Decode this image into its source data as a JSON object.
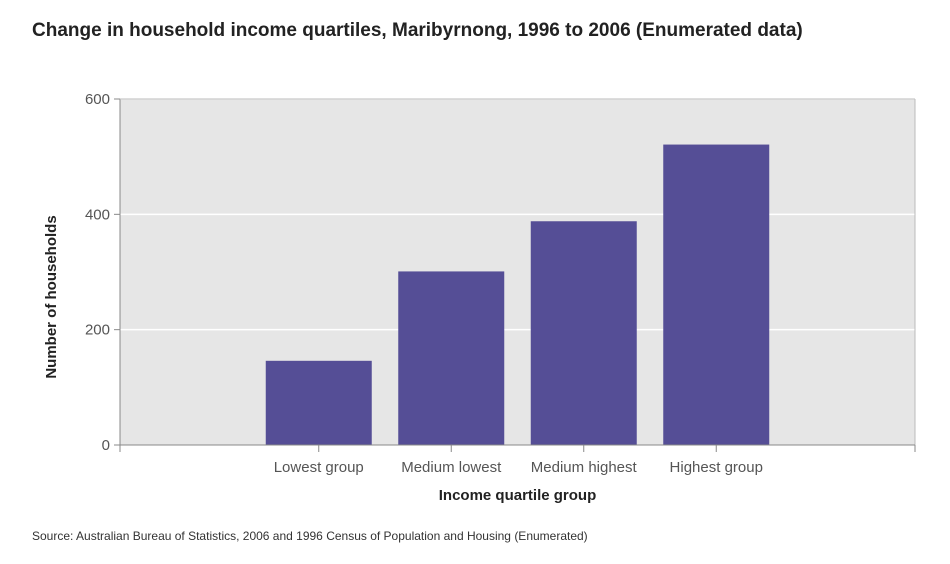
{
  "chart_data": {
    "type": "bar",
    "title": "Change in household income quartiles, Maribyrnong, 1996 to 2006 (Enumerated data)",
    "xlabel": "Income quartile group",
    "ylabel": "Number of households",
    "categories": [
      "Lowest group",
      "Medium lowest",
      "Medium highest",
      "Highest group"
    ],
    "values": [
      146,
      301,
      388,
      521
    ],
    "ylim": [
      0,
      600
    ],
    "yticks": [
      0,
      200,
      400,
      600
    ],
    "ytick_labels": [
      "0",
      "200",
      "400",
      "600"
    ],
    "grid": true,
    "legend": "none",
    "colors": {
      "bar": "#554e96",
      "plot_background": "#e6e6e6",
      "gridline": "#ffffff",
      "axis": "#888888"
    }
  },
  "source_note": "Source: Australian Bureau of Statistics, 2006 and 1996 Census of Population and Housing (Enumerated)"
}
